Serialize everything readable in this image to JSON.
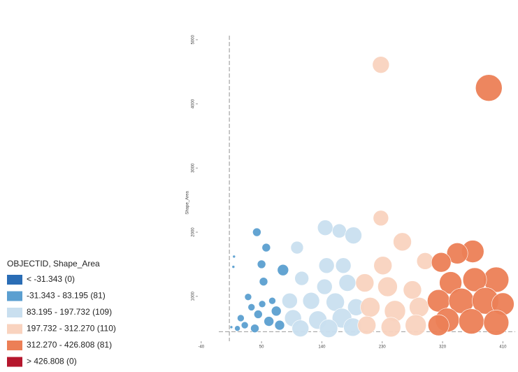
{
  "chart_data": {
    "type": "bubble",
    "y_label": "Shape_Area",
    "xlim": [
      -45,
      420
    ],
    "ylim": [
      300,
      5500
    ],
    "xticks": [
      -40,
      50,
      140,
      230,
      320,
      410
    ],
    "yticks": [
      1000,
      2000,
      3000,
      4000,
      5000
    ],
    "reference_lines": {
      "x": 2,
      "y": 450
    },
    "legend_title": "OBJECTID, Shape_Area",
    "legend_position": "left",
    "series": [
      {
        "name": "< -31.343 (0)",
        "color": "#2a6db5",
        "x": [],
        "values": [],
        "sizes": []
      },
      {
        "name": "-31.343 - 83.195 (81)",
        "color": "#5b9fd0",
        "x": [
          9,
          8,
          5,
          43,
          57,
          50,
          82,
          53,
          30,
          35,
          19,
          25,
          45,
          61,
          72,
          14,
          40,
          77,
          66,
          51
        ],
        "values": [
          1620,
          1460,
          520,
          2000,
          1760,
          1500,
          1410,
          1230,
          990,
          830,
          660,
          550,
          720,
          610,
          770,
          500,
          500,
          550,
          930,
          880
        ],
        "sizes": [
          4,
          4,
          4,
          36,
          36,
          36,
          64,
          36,
          25,
          25,
          25,
          25,
          36,
          49,
          49,
          16,
          36,
          49,
          25,
          25
        ]
      },
      {
        "name": "83.195 - 197.732 (109)",
        "color": "#c9dfef",
        "x": [
          145,
          166,
          187,
          103,
          147,
          172,
          110,
          144,
          178,
          92,
          124,
          160,
          191,
          97,
          134,
          170,
          108,
          150,
          186
        ],
        "values": [
          2070,
          2020,
          1950,
          1760,
          1480,
          1480,
          1280,
          1150,
          1210,
          930,
          930,
          910,
          830,
          660,
          630,
          660,
          500,
          500,
          520
        ],
        "sizes": [
          121,
          100,
          144,
          81,
          121,
          121,
          100,
          121,
          144,
          121,
          144,
          169,
          144,
          144,
          169,
          196,
          144,
          169,
          169
        ]
      },
      {
        "name": "197.732 - 312.270 (110)",
        "color": "#f9d3bf",
        "x": [
          228,
          260,
          231,
          294,
          204,
          238,
          275,
          212,
          249,
          285,
          207,
          243,
          280,
          228
        ],
        "values": [
          2220,
          1850,
          1480,
          1550,
          1210,
          1150,
          1100,
          830,
          770,
          830,
          550,
          520,
          550,
          4610
        ],
        "sizes": [
          121,
          169,
          169,
          144,
          169,
          196,
          169,
          196,
          225,
          196,
          169,
          196,
          225,
          144
        ]
      },
      {
        "name": "312.270 - 426.808 (81)",
        "color": "#ec7f56",
        "x": [
          389,
          365,
          342,
          318,
          400,
          368,
          332,
          314,
          348,
          384,
          410,
          327,
          363,
          400,
          314
        ],
        "values": [
          4250,
          1700,
          1670,
          1530,
          1260,
          1260,
          1210,
          930,
          930,
          930,
          880,
          630,
          610,
          590,
          550
        ],
        "sizes": [
          361,
          256,
          225,
          196,
          324,
          289,
          256,
          256,
          324,
          361,
          256,
          289,
          324,
          324,
          225
        ]
      },
      {
        "name": "> 426.808 (0)",
        "color": "#b5172d",
        "x": [],
        "values": [],
        "sizes": []
      }
    ]
  }
}
